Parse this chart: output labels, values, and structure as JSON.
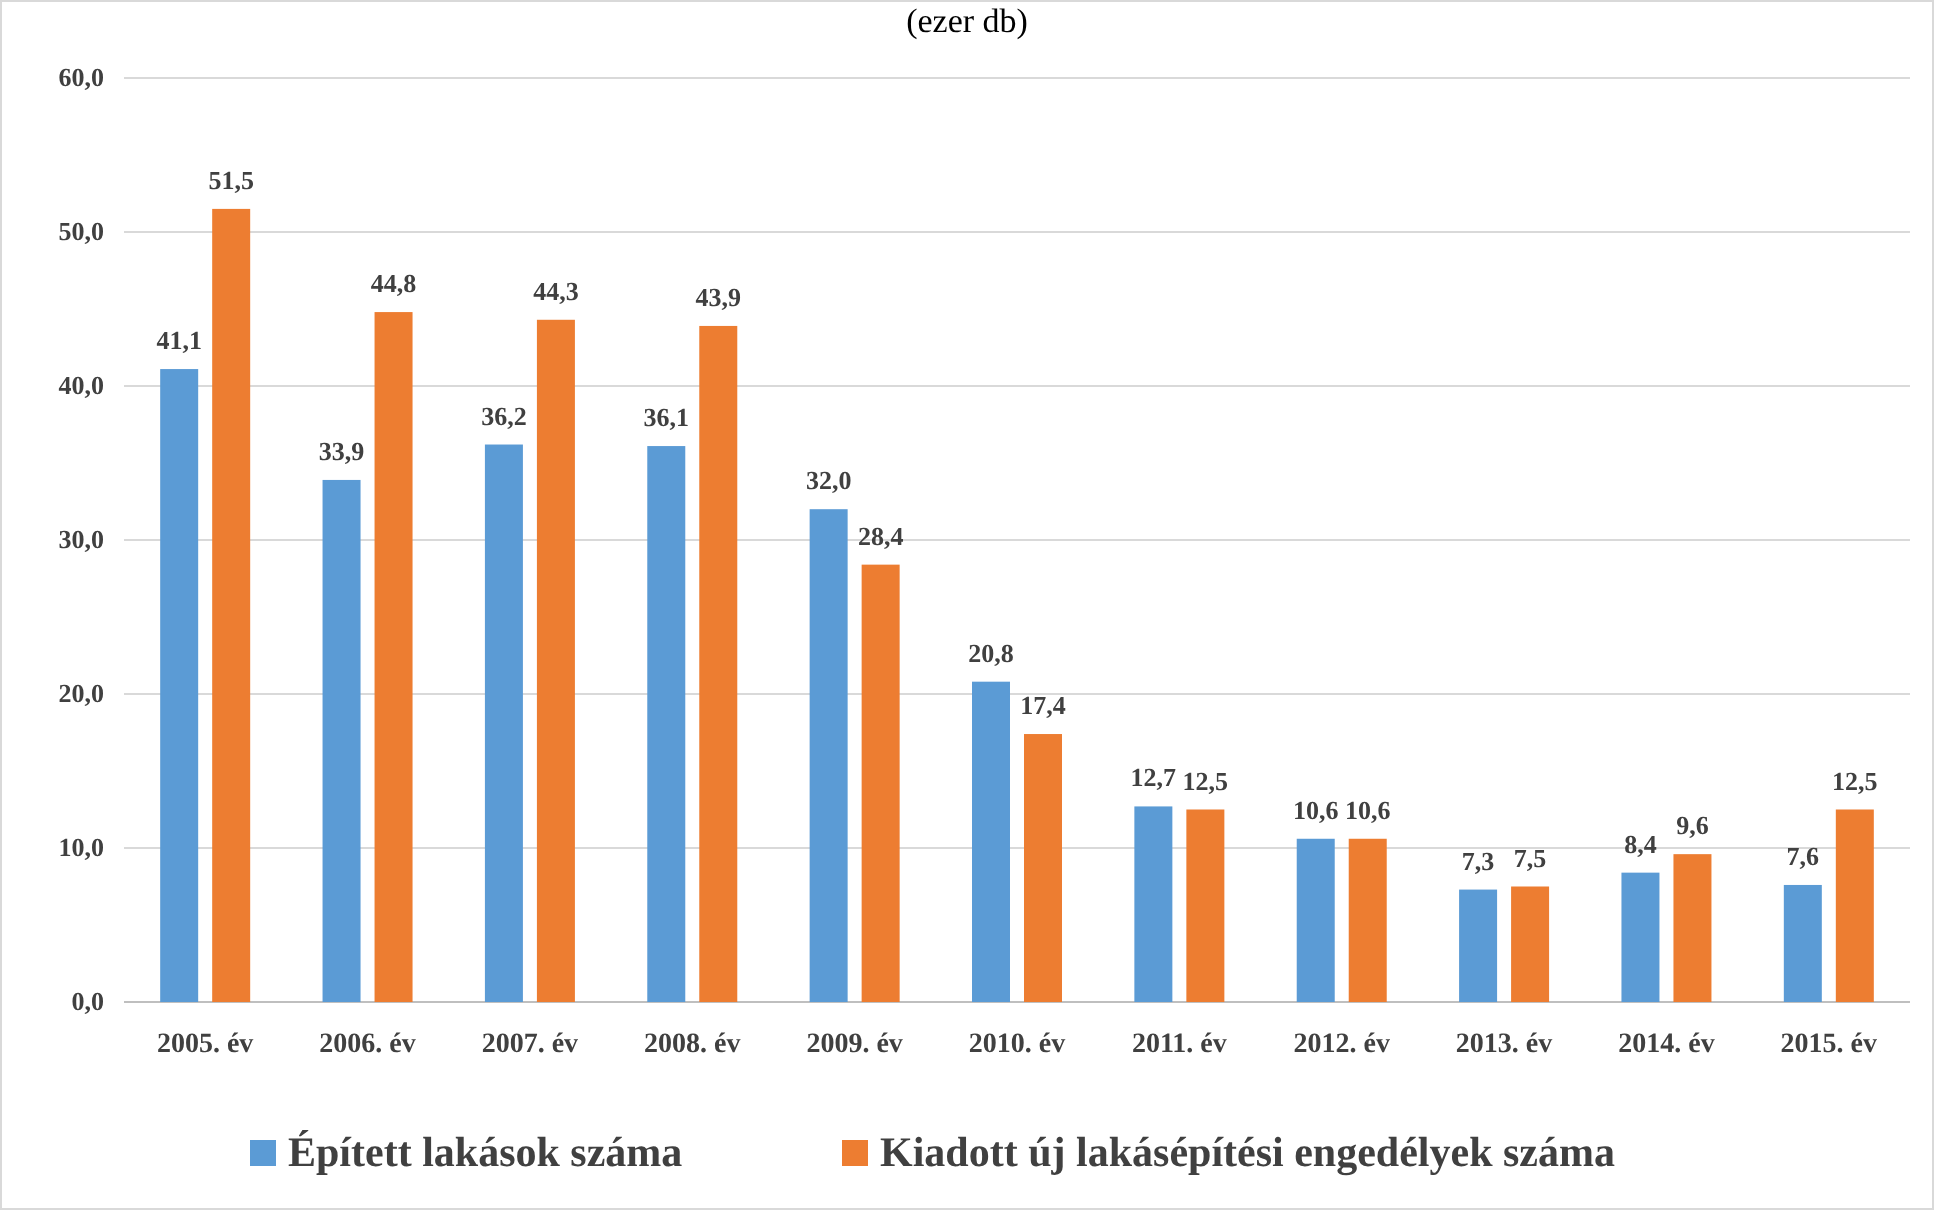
{
  "chart_data": {
    "type": "bar",
    "title": "(ezer db)",
    "categories": [
      "2005. év",
      "2006. év",
      "2007. év",
      "2008. év",
      "2009. év",
      "2010. év",
      "2011. év",
      "2012. év",
      "2013. év",
      "2014. év",
      "2015. év"
    ],
    "series": [
      {
        "name": "Épített lakások száma",
        "color": "#5b9bd5",
        "values": [
          41.1,
          33.9,
          36.2,
          36.1,
          32.0,
          20.8,
          12.7,
          10.6,
          7.3,
          8.4,
          7.6
        ],
        "value_labels": [
          "41,1",
          "33,9",
          "36,2",
          "36,1",
          "32,0",
          "20,8",
          "12,7",
          "10,6",
          "7,3",
          "8,4",
          "7,6"
        ]
      },
      {
        "name": "Kiadott új lakásépítési engedélyek száma",
        "color": "#ed7d31",
        "values": [
          51.5,
          44.8,
          44.3,
          43.9,
          28.4,
          17.4,
          12.5,
          10.6,
          7.5,
          9.6,
          12.5
        ],
        "value_labels": [
          "51,5",
          "44,8",
          "44,3",
          "43,9",
          "28,4",
          "17,4",
          "12,5",
          "10,6",
          "7,5",
          "9,6",
          "12,5"
        ]
      }
    ],
    "ylim": [
      0,
      60
    ],
    "yticks": [
      {
        "value": 0,
        "label": "0,0"
      },
      {
        "value": 10,
        "label": "10,0"
      },
      {
        "value": 20,
        "label": "20,0"
      },
      {
        "value": 30,
        "label": "30,0"
      },
      {
        "value": 40,
        "label": "40,0"
      },
      {
        "value": 50,
        "label": "50,0"
      },
      {
        "value": 60,
        "label": "60,0"
      }
    ],
    "grid": "y",
    "legend": "bottom"
  }
}
